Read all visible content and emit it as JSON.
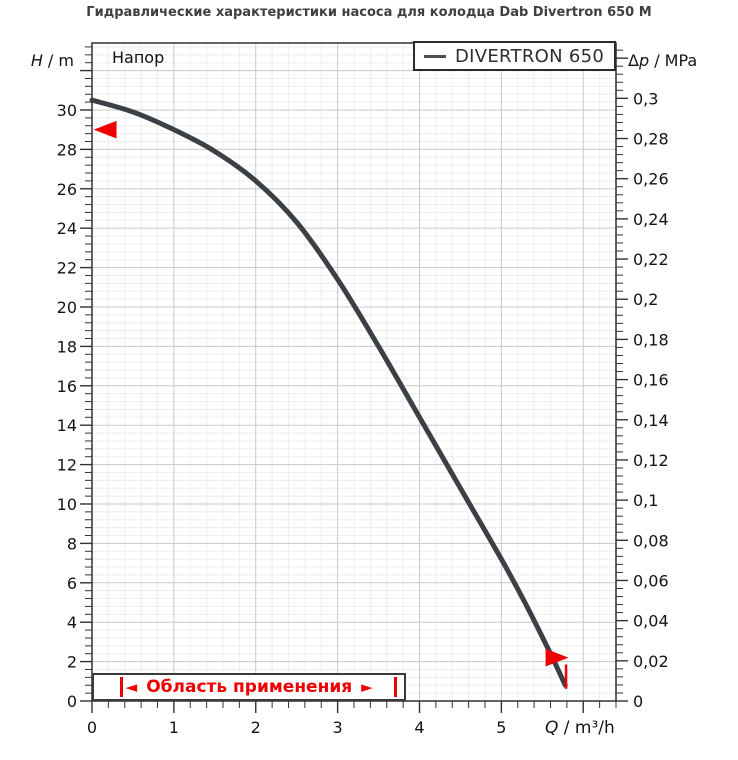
{
  "title": "Гидравлические характеристики насоса для колодца Dab Divertron 650 M",
  "chart_data": {
    "type": "line",
    "title": "Гидравлические характеристики насоса для колодца Dab Divertron 650 M",
    "head_label": "Напор",
    "series": [
      {
        "name": "DIVERTRON 650",
        "color": "#3b4046",
        "points": [
          [
            0,
            30.5
          ],
          [
            0.5,
            29.9
          ],
          [
            1,
            29.0
          ],
          [
            1.5,
            27.9
          ],
          [
            2,
            26.4
          ],
          [
            2.5,
            24.3
          ],
          [
            3,
            21.4
          ],
          [
            3.5,
            18.0
          ],
          [
            4,
            14.4
          ],
          [
            4.5,
            10.8
          ],
          [
            5,
            7.2
          ],
          [
            5.3,
            4.9
          ],
          [
            5.6,
            2.4
          ],
          [
            5.78,
            0.8
          ]
        ]
      }
    ],
    "x_axis": {
      "symbol": "Q",
      "rest": " / m³/h",
      "label": "Q / m³/h",
      "min": 0,
      "max": 6.4,
      "major_step": 1,
      "minor_step": 0.2,
      "last_labeled": 5,
      "tick_labels": [
        "0",
        "1",
        "2",
        "3",
        "4",
        "5"
      ]
    },
    "y_left": {
      "symbol": "H",
      "rest": " / m",
      "label": "H / m",
      "min": 0,
      "max": 33.4,
      "major_step": 2,
      "minor_step": 0.4,
      "last_labeled": 30,
      "tick_labels": [
        "0",
        "2",
        "4",
        "6",
        "8",
        "10",
        "12",
        "14",
        "16",
        "18",
        "20",
        "22",
        "24",
        "26",
        "28",
        "30"
      ]
    },
    "y_right": {
      "symbol_prefix": "Δ",
      "symbol": "p",
      "rest": " / MPa",
      "label": "Δp / MPa",
      "min": 0,
      "max_mpa": 0.3276,
      "major_step": 0.02,
      "minor_step": 0.004,
      "m_per_mpa": 101.97,
      "tick_labels": [
        "0",
        "0,02",
        "0,04",
        "0,06",
        "0,08",
        "0,1",
        "0,12",
        "0,14",
        "0,16",
        "0,18",
        "0,2",
        "0,22",
        "0,24",
        "0,26",
        "0,28",
        "0,3"
      ]
    },
    "legend": {
      "position": "top-right"
    },
    "annotations": {
      "head_marker": {
        "shape": "triangle-left",
        "q_tip": 0.02,
        "q_base": 0.3,
        "h": 29,
        "h_half": 0.45
      },
      "end_marker": {
        "shape": "triangle-right",
        "q_tip": 5.82,
        "q_base": 5.54,
        "h": 2.2,
        "h_half": 0.45
      },
      "end_line": {
        "q": 5.79,
        "h_from": 1.85,
        "h_to": 0.62
      },
      "application_range": {
        "left_arrow": "◄",
        "label": "Область применения",
        "right_arrow": "►",
        "q_from": 0,
        "q_to": 3.84,
        "h_top": 1.42
      }
    },
    "colors": {
      "curve": "#3b4046",
      "red": "#ee0000",
      "grid_major": "#c9c9c9",
      "grid_minor": "#ededed",
      "frame": "#3d3d3d"
    }
  }
}
